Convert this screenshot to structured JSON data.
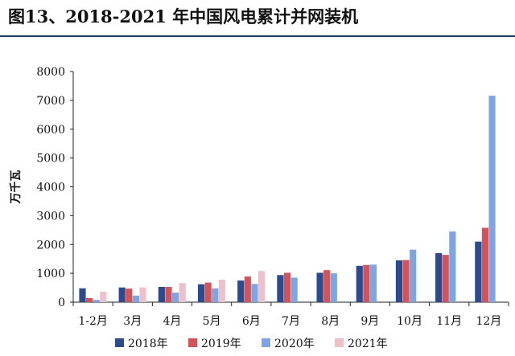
{
  "header": {
    "title": "图13、2018-2021 年中国风电累计并网装机"
  },
  "chart_data": {
    "type": "bar",
    "title": "图13、2018-2021 年中国风电累计并网装机",
    "xlabel": "",
    "ylabel": "万千瓦",
    "ylim": [
      0,
      8000
    ],
    "yticks": [
      0,
      1000,
      2000,
      3000,
      4000,
      5000,
      6000,
      7000,
      8000
    ],
    "grid": false,
    "legend_position": "bottom",
    "categories": [
      "1-2月",
      "3月",
      "4月",
      "5月",
      "6月",
      "7月",
      "8月",
      "9月",
      "10月",
      "11月",
      "12月"
    ],
    "series": [
      {
        "name": "2018年",
        "color": "#2e4a8f",
        "values": [
          480,
          510,
          530,
          620,
          750,
          940,
          1020,
          1260,
          1450,
          1700,
          2100
        ]
      },
      {
        "name": "2019年",
        "color": "#d2545a",
        "values": [
          140,
          470,
          530,
          680,
          890,
          1020,
          1110,
          1290,
          1460,
          1640,
          2580
        ]
      },
      {
        "name": "2020年",
        "color": "#7ea4e2",
        "values": [
          80,
          230,
          330,
          480,
          630,
          850,
          1000,
          1300,
          1820,
          2450,
          7160
        ]
      },
      {
        "name": "2021年",
        "color": "#ecc1cc",
        "values": [
          360,
          510,
          660,
          780,
          1080,
          null,
          null,
          null,
          null,
          null,
          null
        ]
      }
    ]
  }
}
